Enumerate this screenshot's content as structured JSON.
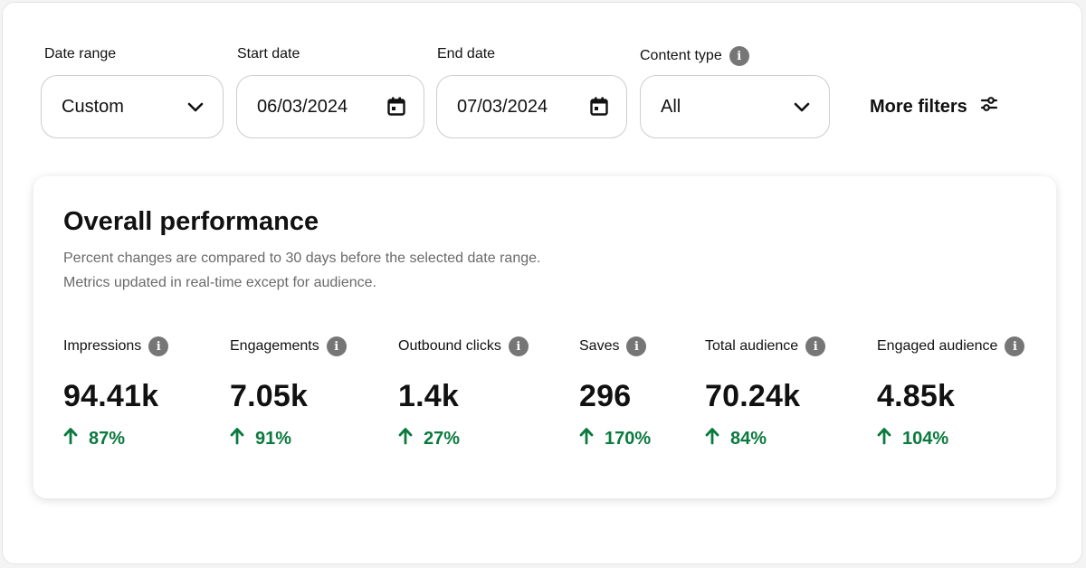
{
  "colors": {
    "positive": "#0a7a3e",
    "info_icon": "#767676",
    "border": "#cdcdcd"
  },
  "filters": {
    "date_range": {
      "label": "Date range",
      "value": "Custom",
      "icon": "chevron-down-icon"
    },
    "start_date": {
      "label": "Start date",
      "value": "06/03/2024",
      "icon": "calendar-icon"
    },
    "end_date": {
      "label": "End date",
      "value": "07/03/2024",
      "icon": "calendar-icon"
    },
    "content_type": {
      "label": "Content type",
      "value": "All",
      "icon": "chevron-down-icon",
      "info_icon": "i"
    },
    "more_filters": {
      "label": "More filters",
      "icon": "sliders-icon"
    }
  },
  "performance": {
    "title": "Overall performance",
    "subtitle_line1": "Percent changes are compared to 30 days before the selected date range.",
    "subtitle_line2": "Metrics updated in real-time except for audience.",
    "metrics": [
      {
        "label": "Impressions",
        "value": "94.41k",
        "change": "87%",
        "direction": "up"
      },
      {
        "label": "Engagements",
        "value": "7.05k",
        "change": "91%",
        "direction": "up"
      },
      {
        "label": "Outbound clicks",
        "value": "1.4k",
        "change": "27%",
        "direction": "up"
      },
      {
        "label": "Saves",
        "value": "296",
        "change": "170%",
        "direction": "up"
      },
      {
        "label": "Total audience",
        "value": "70.24k",
        "change": "84%",
        "direction": "up"
      },
      {
        "label": "Engaged audience",
        "value": "4.85k",
        "change": "104%",
        "direction": "up"
      }
    ]
  }
}
